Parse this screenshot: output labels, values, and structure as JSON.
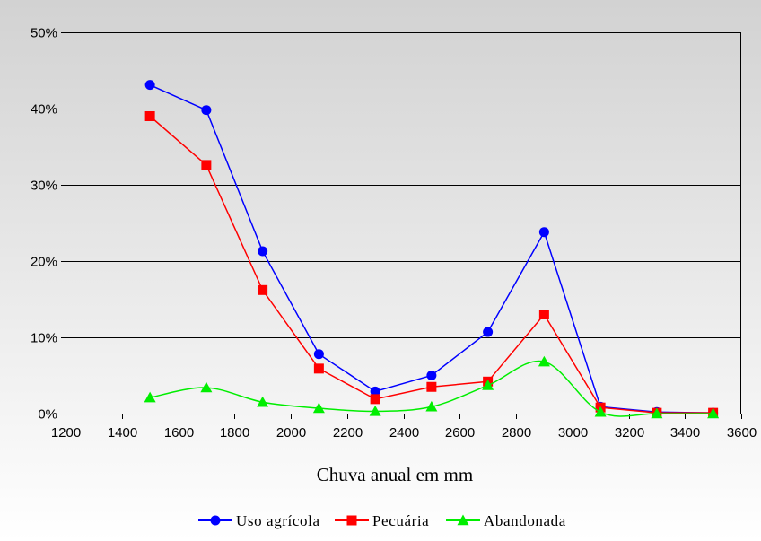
{
  "chart_data": {
    "type": "line",
    "title": "",
    "xlabel": "Chuva anual em mm",
    "ylabel": "",
    "xlim": [
      1200,
      3600
    ],
    "ylim": [
      0,
      50
    ],
    "x_ticks": [
      "1200",
      "1400",
      "1600",
      "1800",
      "2000",
      "2200",
      "2400",
      "2600",
      "2800",
      "3000",
      "3200",
      "3400",
      "3600"
    ],
    "y_ticks": [
      "0%",
      "10%",
      "20%",
      "30%",
      "40%",
      "50%"
    ],
    "grid": "horizontal",
    "legend_position": "bottom",
    "x": [
      1500,
      1700,
      1900,
      2100,
      2300,
      2500,
      2700,
      2900,
      3100,
      3300,
      3500
    ],
    "series": [
      {
        "name": "Uso agrícola",
        "color": "#0000ff",
        "marker": "circle",
        "smooth": false,
        "values": [
          43.1,
          39.8,
          21.3,
          7.8,
          2.9,
          5.0,
          10.7,
          23.8,
          0.9,
          0.2,
          0.1
        ]
      },
      {
        "name": "Pecuária",
        "color": "#ff0000",
        "marker": "square",
        "smooth": false,
        "values": [
          39.0,
          32.6,
          16.2,
          5.9,
          1.9,
          3.5,
          4.2,
          13.0,
          0.8,
          0.1,
          0.1
        ]
      },
      {
        "name": "Abandonada",
        "color": "#00ee00",
        "marker": "triangle",
        "smooth": true,
        "values": [
          2.1,
          3.4,
          1.5,
          0.7,
          0.3,
          0.9,
          3.7,
          6.8,
          0.2,
          0.0,
          0.0
        ]
      }
    ]
  }
}
